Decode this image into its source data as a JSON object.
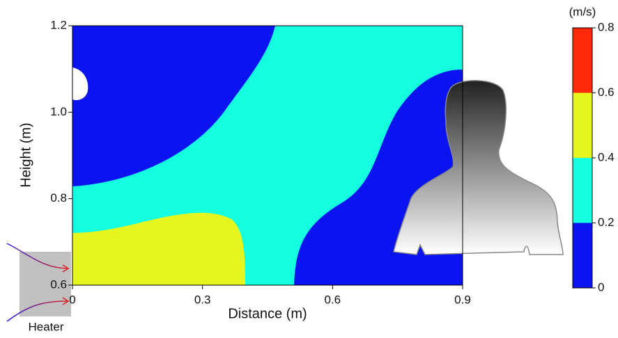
{
  "chart_data": {
    "type": "contour",
    "x_label": "Distance (m)",
    "y_label": "Height (m)",
    "xlim": [
      0,
      0.9
    ],
    "xticks": [
      0,
      0.3,
      0.6,
      0.9
    ],
    "ylim": [
      0.6,
      1.2
    ],
    "yticks": [
      0.6,
      0.8,
      {
        "value": 1.0,
        "label": "1.0"
      },
      1.2
    ],
    "colorbar": {
      "label": "(m/s)",
      "levels": [
        0,
        0.2,
        0.4,
        0.6,
        0.8
      ],
      "colors": [
        "#0a14f0",
        "#14ffe0",
        "#e6f51e",
        "#ff2a0a"
      ]
    },
    "annotation": "Heater"
  }
}
